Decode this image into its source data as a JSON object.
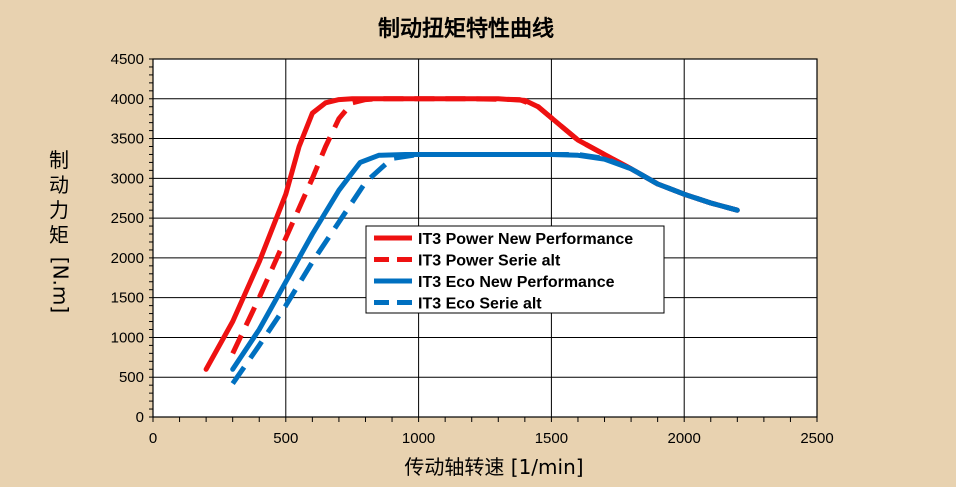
{
  "chart_data": {
    "type": "line",
    "title": "制动扭矩特性曲线",
    "xlabel": "传动轴转速 [1/min]",
    "ylabel_chars": [
      "制",
      "动",
      "力",
      "矩"
    ],
    "ylabel_unit": "[N.m]",
    "xlim": [
      0,
      2500
    ],
    "ylim": [
      0,
      4500
    ],
    "xticks": [
      "0",
      "500",
      "1000",
      "1500",
      "2000",
      "2500"
    ],
    "yticks": [
      "0",
      "500",
      "1000",
      "1500",
      "2000",
      "2500",
      "3000",
      "3500",
      "4000",
      "4500"
    ],
    "grid": true,
    "legend_position": "center",
    "series": [
      {
        "name": "IT3 Power New Performance",
        "color": "#ee1111",
        "dash": "solid",
        "points": [
          [
            200,
            600
          ],
          [
            300,
            1200
          ],
          [
            400,
            1950
          ],
          [
            500,
            2800
          ],
          [
            550,
            3400
          ],
          [
            600,
            3820
          ],
          [
            650,
            3950
          ],
          [
            700,
            3990
          ],
          [
            750,
            4000
          ],
          [
            900,
            4000
          ],
          [
            1100,
            4000
          ],
          [
            1300,
            4000
          ],
          [
            1400,
            3980
          ],
          [
            1450,
            3900
          ],
          [
            1500,
            3760
          ],
          [
            1600,
            3480
          ],
          [
            1700,
            3300
          ],
          [
            1800,
            3120
          ],
          [
            1900,
            2930
          ],
          [
            2000,
            2800
          ],
          [
            2100,
            2690
          ],
          [
            2200,
            2600
          ]
        ]
      },
      {
        "name": "IT3 Power Serie alt",
        "color": "#ee1111",
        "dash": "dashed",
        "points": [
          [
            300,
            800
          ],
          [
            400,
            1500
          ],
          [
            500,
            2250
          ],
          [
            600,
            3000
          ],
          [
            650,
            3400
          ],
          [
            700,
            3750
          ],
          [
            750,
            3950
          ],
          [
            800,
            3990
          ],
          [
            850,
            4000
          ],
          [
            1000,
            4000
          ],
          [
            1200,
            4000
          ],
          [
            1380,
            3990
          ],
          [
            1450,
            3900
          ],
          [
            1500,
            3760
          ],
          [
            1600,
            3480
          ],
          [
            1700,
            3300
          ],
          [
            1800,
            3120
          ],
          [
            1900,
            2930
          ],
          [
            2000,
            2800
          ],
          [
            2100,
            2690
          ],
          [
            2200,
            2600
          ]
        ]
      },
      {
        "name": "IT3 Eco New Performance",
        "color": "#0070c0",
        "dash": "solid",
        "points": [
          [
            300,
            600
          ],
          [
            400,
            1100
          ],
          [
            500,
            1700
          ],
          [
            600,
            2300
          ],
          [
            700,
            2850
          ],
          [
            780,
            3200
          ],
          [
            850,
            3290
          ],
          [
            950,
            3300
          ],
          [
            1100,
            3300
          ],
          [
            1300,
            3300
          ],
          [
            1500,
            3300
          ],
          [
            1600,
            3290
          ],
          [
            1700,
            3240
          ],
          [
            1800,
            3120
          ],
          [
            1900,
            2930
          ],
          [
            2000,
            2800
          ],
          [
            2100,
            2690
          ],
          [
            2200,
            2600
          ]
        ]
      },
      {
        "name": "IT3 Eco Serie alt",
        "color": "#0070c0",
        "dash": "dashed",
        "points": [
          [
            300,
            420
          ],
          [
            400,
            900
          ],
          [
            500,
            1400
          ],
          [
            600,
            1950
          ],
          [
            700,
            2450
          ],
          [
            800,
            2950
          ],
          [
            900,
            3250
          ],
          [
            1000,
            3300
          ],
          [
            1200,
            3300
          ],
          [
            1400,
            3300
          ],
          [
            1600,
            3300
          ],
          [
            1700,
            3250
          ],
          [
            1800,
            3120
          ],
          [
            1900,
            2930
          ],
          [
            2000,
            2800
          ],
          [
            2100,
            2690
          ],
          [
            2200,
            2600
          ]
        ]
      }
    ]
  }
}
